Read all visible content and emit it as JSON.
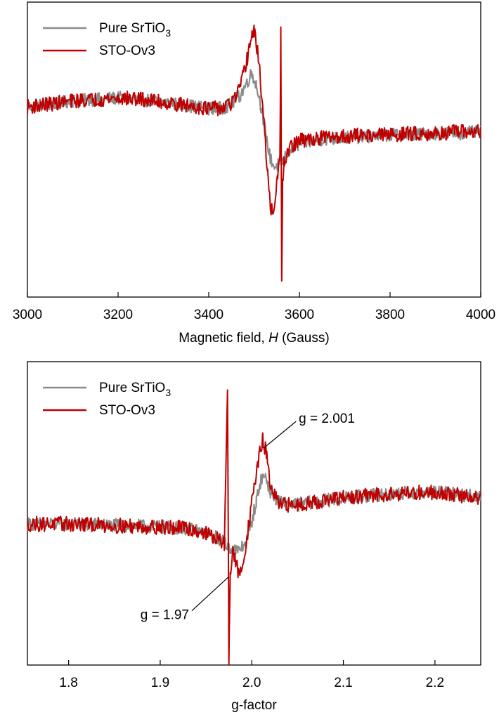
{
  "colors": {
    "series1": "#8c8c8c",
    "series2": "#c00000",
    "axis": "#000000",
    "background": "#ffffff"
  },
  "chart_data": [
    {
      "type": "line",
      "xlabel_parts": [
        "Magnetic field, ",
        "H",
        " (Gauss)"
      ],
      "ylabel": "",
      "xlim": [
        3000,
        4000
      ],
      "ylim": [
        -1,
        1
      ],
      "y_ticks_shown": false,
      "xticks": [
        3000,
        3200,
        3400,
        3600,
        3800,
        4000
      ],
      "xtick_labels": [
        "3000",
        "3200",
        "3400",
        "3600",
        "3800",
        "4000"
      ],
      "legend": {
        "placement": "top-left",
        "entries": [
          {
            "label": "Pure SrTiO",
            "subscript": "3",
            "series": 0
          },
          {
            "label": "STO-Ov3",
            "subscript": "",
            "series": 1
          }
        ]
      },
      "grid": false,
      "series": [
        {
          "name": "Pure SrTiO3",
          "color": "#8c8c8c",
          "x": [
            3000,
            3050,
            3100,
            3150,
            3200,
            3250,
            3300,
            3350,
            3400,
            3430,
            3450,
            3470,
            3485,
            3495,
            3505,
            3515,
            3525,
            3535,
            3545,
            3555,
            3558,
            3561,
            3565,
            3575,
            3600,
            3650,
            3700,
            3750,
            3800,
            3850,
            3900,
            3950,
            4000
          ],
          "y": [
            0.29,
            0.31,
            0.33,
            0.34,
            0.35,
            0.34,
            0.32,
            0.3,
            0.28,
            0.28,
            0.31,
            0.37,
            0.46,
            0.52,
            0.44,
            0.3,
            0.12,
            -0.05,
            -0.12,
            -0.1,
            -0.09,
            -0.08,
            -0.07,
            -0.02,
            0.04,
            0.07,
            0.08,
            0.09,
            0.1,
            0.1,
            0.11,
            0.11,
            0.12
          ]
        },
        {
          "name": "STO-Ov3",
          "color": "#c00000",
          "x": [
            3000,
            3050,
            3100,
            3150,
            3200,
            3250,
            3300,
            3350,
            3400,
            3430,
            3450,
            3470,
            3485,
            3495,
            3500,
            3510,
            3520,
            3530,
            3538,
            3545,
            3552,
            3557,
            3559,
            3561,
            3563,
            3566,
            3575,
            3600,
            3650,
            3700,
            3750,
            3800,
            3850,
            3900,
            3950,
            4000
          ],
          "y": [
            0.29,
            0.31,
            0.33,
            0.34,
            0.35,
            0.34,
            0.32,
            0.3,
            0.28,
            0.28,
            0.31,
            0.42,
            0.62,
            0.78,
            0.8,
            0.62,
            0.25,
            -0.18,
            -0.42,
            -0.38,
            -0.2,
            -0.05,
            0.8,
            -0.92,
            -0.25,
            -0.1,
            0.0,
            0.06,
            0.08,
            0.09,
            0.1,
            0.1,
            0.11,
            0.11,
            0.12,
            0.12
          ]
        }
      ]
    },
    {
      "type": "line",
      "xlabel": "g-factor",
      "ylabel": "",
      "xlim": [
        1.755,
        2.25
      ],
      "ylim": [
        -1,
        1
      ],
      "y_ticks_shown": false,
      "xticks": [
        1.8,
        1.9,
        2.0,
        2.1,
        2.2
      ],
      "xtick_labels": [
        "1.8",
        "1.9",
        "2.0",
        "2.1",
        "2.2"
      ],
      "legend": {
        "placement": "top-left",
        "entries": [
          {
            "label": "Pure SrTiO",
            "subscript": "3",
            "series": 0
          },
          {
            "label": "STO-Ov3",
            "subscript": "",
            "series": 1
          }
        ]
      },
      "annotations": [
        {
          "text": "g = 2.001",
          "x": 2.013,
          "y": 0.43
        },
        {
          "text": "g = 1.97",
          "x": 1.9745,
          "y": -0.42
        }
      ],
      "grid": false,
      "series": [
        {
          "name": "Pure SrTiO3",
          "color": "#8c8c8c",
          "x": [
            1.755,
            1.8,
            1.85,
            1.9,
            1.93,
            1.95,
            1.965,
            1.975,
            1.985,
            1.995,
            2.005,
            2.01,
            2.015,
            2.02,
            2.03,
            2.05,
            2.1,
            2.15,
            2.2,
            2.25
          ],
          "y": [
            -0.07,
            -0.07,
            -0.08,
            -0.09,
            -0.1,
            -0.13,
            -0.17,
            -0.22,
            -0.25,
            -0.18,
            0.08,
            0.22,
            0.25,
            0.15,
            0.07,
            0.06,
            0.1,
            0.13,
            0.14,
            0.11
          ]
        },
        {
          "name": "STO-Ov3",
          "color": "#c00000",
          "x": [
            1.755,
            1.8,
            1.85,
            1.9,
            1.93,
            1.95,
            1.965,
            1.97,
            1.9735,
            1.975,
            1.9765,
            1.979,
            1.985,
            1.988,
            1.995,
            2.002,
            2.008,
            2.012,
            2.016,
            2.02,
            2.03,
            2.05,
            2.1,
            2.15,
            2.2,
            2.25
          ],
          "y": [
            -0.07,
            -0.07,
            -0.08,
            -0.09,
            -0.1,
            -0.13,
            -0.18,
            -0.21,
            0.82,
            -0.95,
            -0.4,
            -0.25,
            -0.38,
            -0.4,
            -0.15,
            0.15,
            0.38,
            0.48,
            0.4,
            0.18,
            0.05,
            0.06,
            0.1,
            0.13,
            0.14,
            0.1
          ]
        }
      ]
    }
  ]
}
